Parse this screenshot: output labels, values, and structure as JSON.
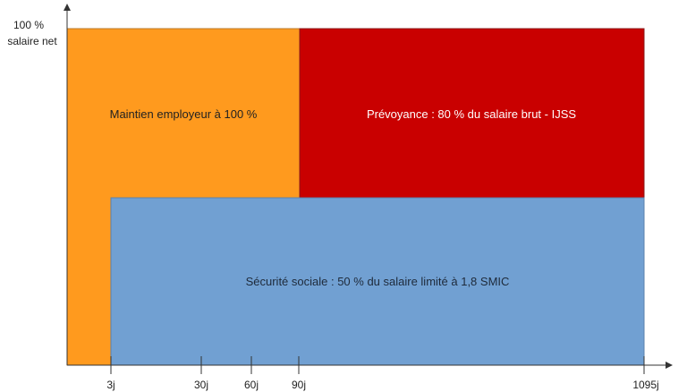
{
  "y_axis": {
    "top_label_line1": "100 %",
    "top_label_line2": "salaire net"
  },
  "x_axis": {
    "ticks": [
      "3j",
      "30j",
      "60j",
      "90j",
      "1095j"
    ]
  },
  "regions": {
    "employer": {
      "label": "Maintien employeur à 100 %",
      "color": "#ff9a1e"
    },
    "prevoyance": {
      "label": "Prévoyance : 80 % du salaire brut - IJSS",
      "color": "#c90000"
    },
    "securite_sociale": {
      "label": "Sécurité sociale : 50 % du salaire limité à 1,8 SMIC",
      "color": "#71a0d2"
    }
  },
  "colors": {
    "axis": "#333333",
    "employer_text": "#222222",
    "prevoyance_text": "#ffffff",
    "secu_text": "#1e2a3a"
  }
}
